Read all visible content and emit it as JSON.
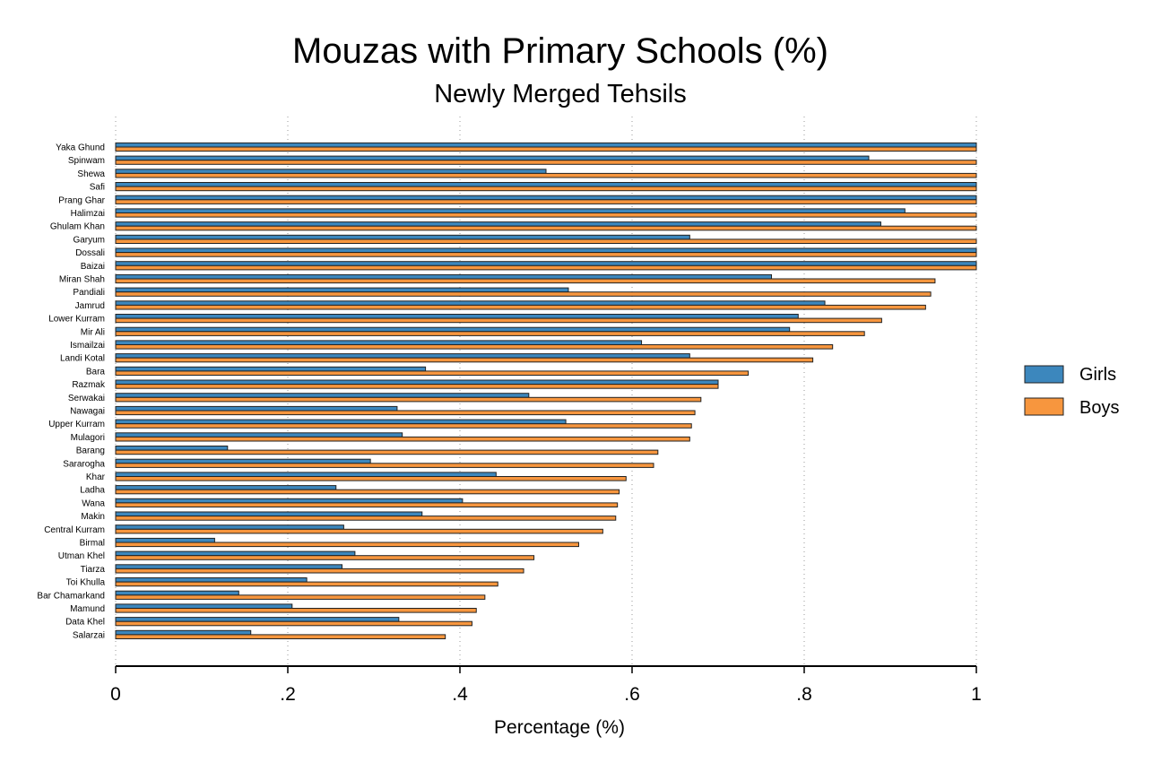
{
  "chart_data": {
    "type": "bar",
    "orientation": "horizontal",
    "title": "Mouzas with Primary Schools (%)",
    "subtitle": "Newly Merged Tehsils",
    "xlabel": "Percentage (%)",
    "xlim": [
      0,
      1
    ],
    "xticks": [
      0,
      0.2,
      0.4,
      0.6,
      0.8,
      1
    ],
    "xtick_labels": [
      "0",
      ".2",
      ".4",
      ".6",
      ".8",
      "1"
    ],
    "grid": true,
    "legend_position": "right",
    "categories": [
      "Yaka Ghund",
      "Spinwam",
      "Shewa",
      "Safi",
      "Prang Ghar",
      "Halimzai",
      "Ghulam Khan",
      "Garyum",
      "Dossali",
      "Baizai",
      "Miran Shah",
      "Pandiali",
      "Jamrud",
      "Lower Kurram",
      "Mir Ali",
      "Ismailzai",
      "Landi Kotal",
      "Bara",
      "Razmak",
      "Serwakai",
      "Nawagai",
      "Upper Kurram",
      "Mulagori",
      "Barang",
      "Sararogha",
      "Khar",
      "Ladha",
      "Wana",
      "Makin",
      "Central Kurram",
      "Birmal",
      "Utman Khel",
      "Tiarza",
      "Toi Khulla",
      "Bar Chamarkand",
      "Mamund",
      "Data Khel",
      "Salarzai"
    ],
    "series": [
      {
        "name": "Girls",
        "color": "#3c87bd",
        "values": [
          1.0,
          0.875,
          0.5,
          1.0,
          1.0,
          0.917,
          0.889,
          0.667,
          1.0,
          1.0,
          0.762,
          0.526,
          0.824,
          0.793,
          0.783,
          0.611,
          0.667,
          0.36,
          0.7,
          0.48,
          0.327,
          0.523,
          0.333,
          0.13,
          0.296,
          0.442,
          0.256,
          0.403,
          0.356,
          0.265,
          0.115,
          0.278,
          0.263,
          0.222,
          0.143,
          0.205,
          0.329,
          0.157
        ]
      },
      {
        "name": "Boys",
        "color": "#f7963e",
        "values": [
          1.0,
          1.0,
          1.0,
          1.0,
          1.0,
          1.0,
          1.0,
          1.0,
          1.0,
          1.0,
          0.952,
          0.947,
          0.941,
          0.89,
          0.87,
          0.833,
          0.81,
          0.735,
          0.7,
          0.68,
          0.673,
          0.669,
          0.667,
          0.63,
          0.625,
          0.593,
          0.585,
          0.583,
          0.581,
          0.566,
          0.538,
          0.486,
          0.474,
          0.444,
          0.429,
          0.419,
          0.414,
          0.383
        ]
      }
    ]
  }
}
